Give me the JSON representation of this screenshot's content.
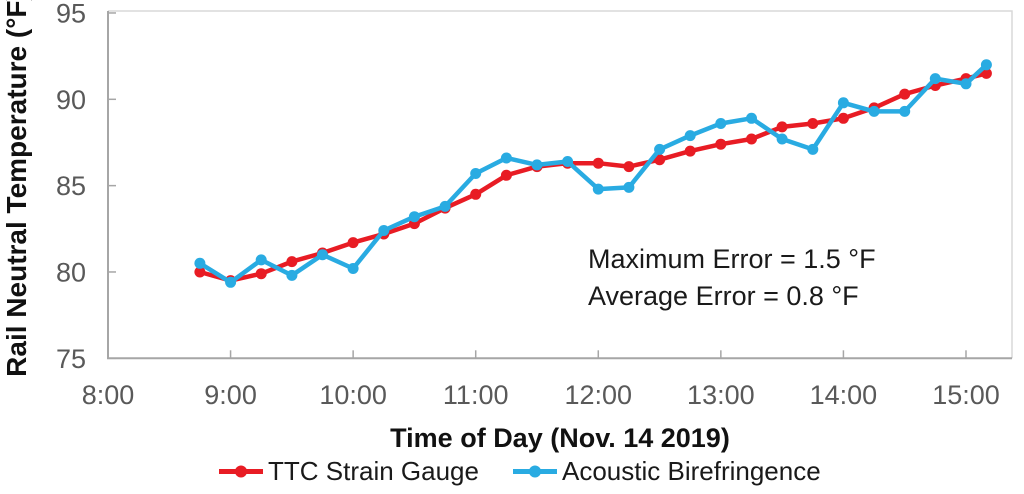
{
  "chart_data": {
    "type": "line",
    "x": [
      "8:45",
      "9:00",
      "9:15",
      "9:30",
      "9:45",
      "10:00",
      "10:15",
      "10:30",
      "10:45",
      "11:00",
      "11:15",
      "11:30",
      "11:45",
      "12:00",
      "12:15",
      "12:30",
      "12:45",
      "13:00",
      "13:15",
      "13:30",
      "13:45",
      "14:00",
      "14:15",
      "14:30",
      "14:45",
      "15:00",
      "15:10"
    ],
    "series": [
      {
        "name": "TTC Strain Gauge",
        "color": "#E81C24",
        "values": [
          80.0,
          79.5,
          79.9,
          80.6,
          81.1,
          81.7,
          82.2,
          82.8,
          83.7,
          84.5,
          85.6,
          86.1,
          86.3,
          86.3,
          86.1,
          86.5,
          87.0,
          87.4,
          87.7,
          88.4,
          88.6,
          88.9,
          89.5,
          90.3,
          90.8,
          91.2,
          91.5
        ]
      },
      {
        "name": "Acoustic Birefringence",
        "color": "#29ABE2",
        "values": [
          80.5,
          79.4,
          80.7,
          79.8,
          81.0,
          80.2,
          82.4,
          83.2,
          83.8,
          85.7,
          86.6,
          86.2,
          86.4,
          84.8,
          84.9,
          87.1,
          87.9,
          88.6,
          88.9,
          87.7,
          87.1,
          89.8,
          89.3,
          89.3,
          91.2,
          90.9,
          92.0
        ]
      }
    ],
    "title": "",
    "xlabel": "Time of Day (Nov. 14 2019)",
    "ylabel": "Rail Neutral Temperature (°F)",
    "x_ticks": [
      "8:00",
      "9:00",
      "10:00",
      "11:00",
      "12:00",
      "13:00",
      "14:00",
      "15:00"
    ],
    "y_ticks": [
      75,
      80,
      85,
      90,
      95
    ],
    "ylim": [
      75,
      95
    ],
    "xlim": [
      "8:00",
      "15:22"
    ],
    "grid": false,
    "legend_position": "bottom",
    "annotations": [
      "Maximum Error = 1.5 °F",
      "Average Error = 0.8 °F"
    ]
  }
}
